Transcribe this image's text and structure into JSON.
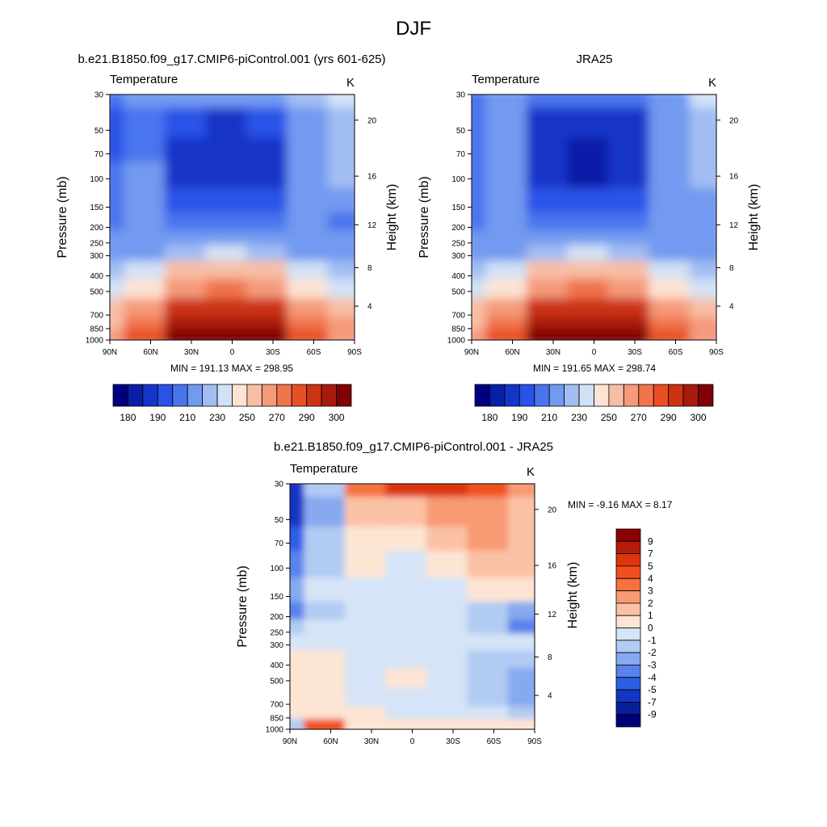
{
  "suptitle": "DJF",
  "panel_titles": {
    "model": "b.e21.B1850.f09_g17.CMIP6-piControl.001 (yrs 601-625)",
    "obs": "JRA25",
    "diff": "b.e21.B1850.f09_g17.CMIP6-piControl.001 - JRA25"
  },
  "common": {
    "variable": "Temperature",
    "units": "K",
    "ylabel_left": "Pressure (mb)",
    "ylabel_right": "Height (km)",
    "pressure_ticks": [
      "30",
      "50",
      "70",
      "100",
      "150",
      "200",
      "250",
      "300",
      "400",
      "500",
      "700",
      "850",
      "1000"
    ],
    "height_ticks": [
      "20",
      "16",
      "12",
      "8",
      "4"
    ],
    "lat_ticks": [
      "90N",
      "60N",
      "30N",
      "0",
      "30S",
      "60S",
      "90S"
    ]
  },
  "stats": {
    "model": "MIN = 191.13  MAX = 298.95",
    "obs": "MIN = 191.65  MAX = 298.74",
    "diff": "MIN =  -9.16  MAX =   8.17"
  },
  "colorbars": {
    "abs_labels": [
      "180",
      "190",
      "210",
      "230",
      "250",
      "270",
      "290",
      "300"
    ],
    "abs_colors": [
      "#00007f",
      "#0a1fa8",
      "#1436c8",
      "#2a52e8",
      "#4a74ee",
      "#729af0",
      "#a2bdf2",
      "#d2e2f6",
      "#fde3d3",
      "#f8bea4",
      "#f59a7a",
      "#f0744c",
      "#e84f25",
      "#cc3313",
      "#a81a0b",
      "#7f0005"
    ],
    "diff_labels": [
      "9",
      "7",
      "5",
      "4",
      "3",
      "2",
      "1",
      "0",
      "-1",
      "-2",
      "-3",
      "-4",
      "-5",
      "-7",
      "-9"
    ],
    "diff_colors": [
      "#8b0000",
      "#b51d0a",
      "#dd360c",
      "#f24f1f",
      "#f5713f",
      "#f89a73",
      "#fbc1a5",
      "#fde5d4",
      "#d5e4f6",
      "#b1cbf3",
      "#86a9f0",
      "#5983ed",
      "#2d5ee6",
      "#1236c2",
      "#0a1e98",
      "#00007a"
    ]
  },
  "chart_data": [
    {
      "type": "heatmap",
      "title": "b.e21.B1850.f09_g17.CMIP6-piControl.001 (yrs 601-625)",
      "variable": "Temperature",
      "units": "K",
      "x": [
        "90N",
        "60N",
        "30N",
        "0",
        "30S",
        "60S",
        "90S"
      ],
      "y": [
        "30",
        "50",
        "70",
        "100",
        "150",
        "200",
        "250",
        "300",
        "400",
        "500",
        "700",
        "850",
        "1000"
      ],
      "values": [
        [
          210,
          220,
          218,
          218,
          218,
          228,
          235
        ],
        [
          208,
          214,
          204,
          202,
          204,
          222,
          232
        ],
        [
          205,
          214,
          198,
          195,
          198,
          222,
          230
        ],
        [
          210,
          218,
          198,
          195,
          198,
          222,
          228
        ],
        [
          215,
          220,
          208,
          205,
          208,
          222,
          222
        ],
        [
          216,
          220,
          212,
          210,
          212,
          218,
          215
        ],
        [
          218,
          222,
          222,
          222,
          222,
          222,
          218
        ],
        [
          222,
          224,
          232,
          236,
          232,
          224,
          222
        ],
        [
          228,
          234,
          250,
          252,
          250,
          234,
          226
        ],
        [
          236,
          244,
          262,
          266,
          262,
          244,
          234
        ],
        [
          248,
          258,
          280,
          284,
          280,
          258,
          248
        ],
        [
          252,
          265,
          288,
          292,
          288,
          265,
          256
        ],
        [
          255,
          272,
          294,
          298,
          294,
          272,
          262
        ]
      ],
      "zlim": [
        180,
        300
      ]
    },
    {
      "type": "heatmap",
      "title": "JRA25",
      "variable": "Temperature",
      "units": "K",
      "x": [
        "90N",
        "60N",
        "30N",
        "0",
        "30S",
        "60S",
        "90S"
      ],
      "y": [
        "30",
        "50",
        "70",
        "100",
        "150",
        "200",
        "250",
        "300",
        "400",
        "500",
        "700",
        "850",
        "1000"
      ],
      "values": [
        [
          216,
          220,
          212,
          212,
          212,
          222,
          235
        ],
        [
          214,
          218,
          202,
          200,
          202,
          220,
          228
        ],
        [
          212,
          218,
          198,
          194,
          198,
          220,
          226
        ],
        [
          212,
          220,
          198,
          194,
          198,
          222,
          226
        ],
        [
          214,
          220,
          208,
          205,
          208,
          222,
          222
        ],
        [
          216,
          220,
          212,
          210,
          212,
          220,
          218
        ],
        [
          220,
          222,
          222,
          222,
          222,
          222,
          218
        ],
        [
          222,
          224,
          232,
          236,
          232,
          224,
          222
        ],
        [
          228,
          234,
          250,
          252,
          250,
          234,
          226
        ],
        [
          236,
          244,
          262,
          266,
          262,
          244,
          234
        ],
        [
          248,
          258,
          280,
          284,
          280,
          258,
          248
        ],
        [
          252,
          265,
          288,
          292,
          288,
          265,
          256
        ],
        [
          255,
          272,
          294,
          298,
          294,
          272,
          262
        ]
      ],
      "zlim": [
        180,
        300
      ]
    },
    {
      "type": "heatmap",
      "title": "b.e21.B1850.f09_g17.CMIP6-piControl.001 - JRA25",
      "variable": "Temperature",
      "units": "K",
      "x": [
        "90N",
        "60N",
        "30N",
        "0",
        "30S",
        "60S",
        "90S"
      ],
      "y": [
        "30",
        "50",
        "70",
        "100",
        "150",
        "200",
        "250",
        "300",
        "400",
        "500",
        "700",
        "850",
        "1000"
      ],
      "values": [
        [
          -6,
          -2,
          3,
          5,
          5,
          4,
          2
        ],
        [
          -6,
          -3,
          1,
          1,
          2,
          2,
          1
        ],
        [
          -5,
          -2,
          0,
          0,
          1,
          2,
          1
        ],
        [
          -4,
          -2,
          0,
          -1,
          0,
          1,
          1
        ],
        [
          -3,
          -1,
          -1,
          -1,
          -1,
          0,
          0
        ],
        [
          -4,
          -2,
          -1,
          -1,
          -1,
          -2,
          -3
        ],
        [
          -2,
          -1,
          -1,
          -1,
          -1,
          -2,
          -4
        ],
        [
          -1,
          -1,
          -1,
          -1,
          -1,
          -1,
          -1
        ],
        [
          0,
          0,
          -1,
          -1,
          -1,
          -2,
          -2
        ],
        [
          0,
          0,
          -1,
          0,
          -1,
          -2,
          -3
        ],
        [
          0,
          0,
          -1,
          -1,
          -1,
          -2,
          -3
        ],
        [
          0,
          0,
          0,
          -1,
          -1,
          -1,
          -2
        ],
        [
          -2,
          4,
          0,
          0,
          0,
          0,
          0
        ]
      ],
      "zlim": [
        -9,
        9
      ]
    }
  ]
}
